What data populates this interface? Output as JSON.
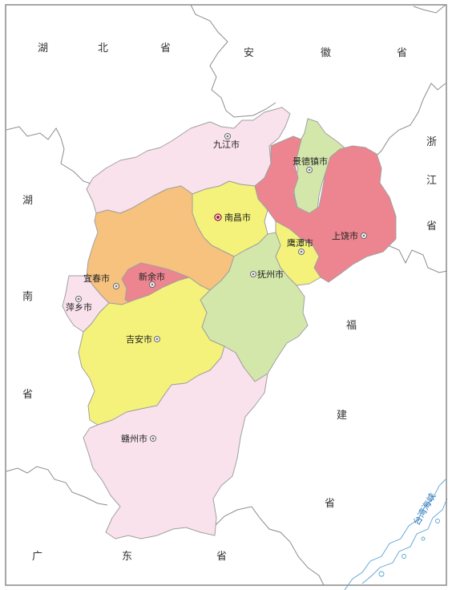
{
  "colors": {
    "pink": "#f9e2ec",
    "orange": "#f6c27e",
    "yellow": "#f4f27a",
    "green": "#d3e7ab",
    "red": "#ec8590",
    "water": "#5aa3d6"
  },
  "neighbor_labels": {
    "hubei": [
      "湖",
      "北",
      "省"
    ],
    "anhui": [
      "安",
      "徽",
      "省"
    ],
    "zhejiang": [
      "浙",
      "江",
      "省"
    ],
    "hunan": [
      "湖",
      "南",
      "省"
    ],
    "fujian": [
      "福",
      "建",
      "省"
    ],
    "guangdong": [
      "广",
      "东",
      "省"
    ]
  },
  "cities": {
    "jiujiang": "九江市",
    "jingdezhen": "景德镇市",
    "nanchang": "南昌市",
    "shangrao": "上饶市",
    "yingtan": "鹰潭市",
    "fuzhou": "抚州市",
    "yichun": "宜春市",
    "xinyu": "新余市",
    "pingxiang": "萍乡市",
    "jian": "吉安市",
    "ganzhou": "赣州市"
  },
  "strait": "台湾海峡"
}
